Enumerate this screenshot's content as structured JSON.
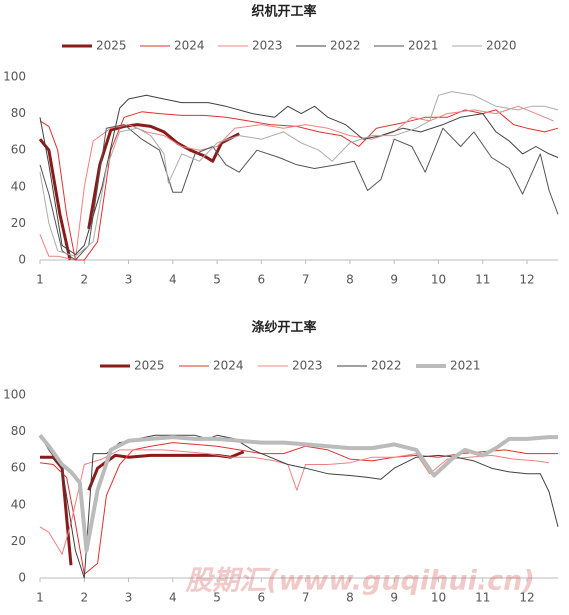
{
  "watermark": "股期汇(www.guqihui.cn)",
  "chart_data": [
    {
      "type": "line",
      "title": "织机开工率",
      "xlim": [
        1,
        12.7
      ],
      "xticks": [
        1,
        2,
        3,
        4,
        5,
        6,
        7,
        8,
        9,
        10,
        11,
        12
      ],
      "ylim": [
        0,
        100
      ],
      "yticks": [
        0,
        20,
        40,
        60,
        80,
        100
      ],
      "series": [
        {
          "name": "2025",
          "color": "#8b1a1a",
          "line_width": 3,
          "x": [
            1,
            1.2,
            1.45,
            1.68,
            1.9,
            2.1,
            2.35,
            2.6,
            2.9,
            3.2,
            3.5,
            3.8,
            4.1,
            4.4,
            4.7,
            4.9,
            5.1,
            5.5
          ],
          "values": [
            66,
            60,
            25,
            0,
            null,
            17,
            52,
            71,
            73,
            74,
            73,
            70,
            64,
            60,
            57,
            54,
            64,
            69
          ]
        },
        {
          "name": "2024",
          "color": "#e03030",
          "line_width": 1,
          "x": [
            1,
            1.2,
            1.4,
            1.6,
            1.8,
            2.0,
            2.3,
            2.6,
            2.9,
            3.3,
            3.7,
            4.2,
            4.7,
            5.2,
            5.7,
            6.2,
            6.8,
            7.3,
            7.8,
            8.2,
            8.6,
            9.2,
            9.7,
            10.2,
            10.6,
            11.0,
            11.3,
            11.7,
            12.0,
            12.4,
            12.7
          ],
          "values": [
            76,
            73,
            60,
            25,
            0,
            0,
            10,
            60,
            78,
            81,
            80,
            79,
            79,
            78,
            76,
            74,
            73,
            70,
            68,
            62,
            72,
            75,
            78,
            78,
            82,
            80,
            82,
            74,
            72,
            70,
            72
          ]
        },
        {
          "name": "2023",
          "color": "#f08080",
          "line_width": 1,
          "x": [
            1,
            1.2,
            1.4,
            1.8,
            2.0,
            2.2,
            2.6,
            3.0,
            3.4,
            3.8,
            4.2,
            4.6,
            5.0,
            5.4,
            6.0,
            6.5,
            7.0,
            7.5,
            8.0,
            8.5,
            9.0,
            9.4,
            9.8,
            10.2,
            10.8,
            11.3,
            11.8,
            12.2,
            12.6
          ],
          "values": [
            14,
            2,
            2,
            0,
            40,
            65,
            72,
            74,
            70,
            68,
            62,
            60,
            62,
            72,
            74,
            72,
            74,
            72,
            68,
            66,
            70,
            78,
            76,
            80,
            82,
            80,
            84,
            80,
            76
          ]
        },
        {
          "name": "2022",
          "color": "#404040",
          "line_width": 1,
          "x": [
            1,
            1.2,
            1.5,
            1.8,
            2.0,
            2.4,
            2.8,
            3.0,
            3.4,
            3.8,
            4.2,
            4.8,
            5.2,
            5.8,
            6.3,
            6.6,
            6.9,
            7.2,
            7.5,
            7.9,
            8.3,
            8.7,
            9.2,
            9.6,
            10.1,
            10.5,
            11.0,
            11.3,
            11.6,
            11.9,
            12.2,
            12.5,
            12.7
          ],
          "values": [
            78,
            52,
            8,
            3,
            8,
            40,
            83,
            88,
            90,
            88,
            86,
            86,
            84,
            80,
            78,
            84,
            80,
            84,
            78,
            74,
            66,
            68,
            72,
            70,
            74,
            78,
            80,
            70,
            65,
            58,
            62,
            58,
            56
          ]
        },
        {
          "name": "2021",
          "color": "#555555",
          "line_width": 1,
          "x": [
            1,
            1.2,
            1.5,
            1.8,
            2.1,
            2.5,
            2.9,
            3.3,
            3.7,
            4.0,
            4.2,
            4.5,
            4.9,
            5.2,
            5.5,
            5.9,
            6.4,
            6.8,
            7.2,
            7.7,
            8.1,
            8.4,
            8.7,
            9.0,
            9.4,
            9.7,
            10.1,
            10.5,
            10.8,
            11.2,
            11.6,
            11.9,
            12.3,
            12.5,
            12.7
          ],
          "values": [
            52,
            36,
            5,
            0,
            8,
            72,
            74,
            66,
            60,
            37,
            37,
            58,
            62,
            52,
            48,
            60,
            56,
            52,
            50,
            52,
            54,
            38,
            44,
            66,
            62,
            48,
            72,
            62,
            70,
            56,
            50,
            36,
            58,
            38,
            25
          ]
        },
        {
          "name": "2020",
          "color": "#aaaaaa",
          "line_width": 1,
          "x": [
            1,
            1.2,
            1.4,
            1.8,
            2.2,
            2.5,
            2.8,
            3.2,
            3.5,
            3.8,
            3.9,
            4.2,
            4.6,
            5.0,
            5.5,
            6.0,
            6.5,
            6.9,
            7.3,
            7.6,
            8.0,
            8.5,
            9.0,
            9.5,
            9.8,
            10.0,
            10.3,
            10.8,
            11.3,
            11.8,
            12.1,
            12.4,
            12.7
          ],
          "values": [
            48,
            20,
            5,
            2,
            10,
            50,
            70,
            72,
            68,
            58,
            42,
            58,
            54,
            64,
            68,
            66,
            70,
            64,
            60,
            54,
            64,
            68,
            68,
            72,
            76,
            90,
            92,
            90,
            84,
            82,
            84,
            84,
            82
          ]
        }
      ]
    },
    {
      "type": "line",
      "title": "涤纱开工率",
      "xlim": [
        1,
        12.7
      ],
      "xticks": [
        1,
        2,
        3,
        4,
        5,
        6,
        7,
        8,
        9,
        10,
        11,
        12
      ],
      "ylim": [
        0,
        100
      ],
      "yticks": [
        0,
        20,
        40,
        60,
        80,
        100
      ],
      "series": [
        {
          "name": "2025",
          "color": "#8b1a1a",
          "line_width": 3,
          "x": [
            1,
            1.3,
            1.5,
            1.7,
            1.9,
            2.1,
            2.3,
            2.7,
            3.0,
            3.5,
            4.0,
            4.5,
            5.0,
            5.3,
            5.6
          ],
          "values": [
            66,
            66,
            60,
            7,
            null,
            48,
            60,
            67,
            66,
            67,
            67,
            67,
            67,
            66,
            69
          ]
        },
        {
          "name": "2024",
          "color": "#e03030",
          "line_width": 1,
          "x": [
            1,
            1.3,
            1.6,
            1.8,
            2.0,
            2.3,
            2.5,
            2.8,
            3.1,
            3.5,
            4.0,
            4.5,
            5.0,
            5.5,
            6.0,
            6.5,
            7.0,
            7.5,
            8.0,
            8.5,
            9.0,
            9.5,
            10.0,
            10.5,
            11.0,
            11.5,
            12.0,
            12.7
          ],
          "values": [
            63,
            62,
            55,
            30,
            2,
            8,
            45,
            62,
            70,
            72,
            74,
            73,
            72,
            70,
            68,
            68,
            72,
            70,
            65,
            64,
            66,
            67,
            66,
            68,
            69,
            70,
            68,
            68
          ]
        },
        {
          "name": "2023",
          "color": "#f08080",
          "line_width": 1,
          "x": [
            1,
            1.2,
            1.5,
            1.7,
            2.0,
            2.4,
            2.8,
            3.3,
            3.8,
            4.3,
            4.8,
            5.3,
            5.8,
            6.3,
            6.6,
            6.8,
            7.0,
            7.5,
            8.0,
            8.5,
            9.0,
            9.5,
            9.8,
            10.2,
            10.7,
            11.2,
            11.7,
            12.2,
            12.5
          ],
          "values": [
            28,
            25,
            13,
            30,
            62,
            65,
            70,
            70,
            70,
            69,
            68,
            66,
            66,
            64,
            62,
            48,
            62,
            62,
            63,
            66,
            66,
            68,
            57,
            65,
            66,
            67,
            65,
            64,
            63
          ]
        },
        {
          "name": "2022",
          "color": "#404040",
          "line_width": 1,
          "x": [
            1,
            1.2,
            1.5,
            1.8,
            2.0,
            2.2,
            2.5,
            2.8,
            3.2,
            3.6,
            4.0,
            4.5,
            4.8,
            5.0,
            5.4,
            5.8,
            6.2,
            6.6,
            7.0,
            7.5,
            8.0,
            8.4,
            8.7,
            9.0,
            9.5,
            10.0,
            10.4,
            10.8,
            11.2,
            11.6,
            12.0,
            12.3,
            12.5,
            12.7
          ],
          "values": [
            78,
            70,
            60,
            15,
            0,
            68,
            68,
            74,
            76,
            78,
            78,
            78,
            76,
            78,
            76,
            70,
            66,
            62,
            60,
            57,
            56,
            55,
            54,
            60,
            66,
            67,
            66,
            64,
            60,
            58,
            57,
            57,
            47,
            28
          ]
        },
        {
          "name": "2021",
          "color": "#bbbbbb",
          "line_width": 4,
          "x": [
            1,
            1.2,
            1.5,
            1.7,
            1.9,
            2.05,
            2.3,
            2.6,
            3.0,
            3.5,
            4.0,
            4.5,
            5.0,
            5.5,
            6.0,
            6.5,
            7.0,
            7.5,
            8.0,
            8.5,
            9.0,
            9.5,
            9.9,
            10.3,
            10.6,
            11.0,
            11.3,
            11.6,
            12.0,
            12.5,
            12.7
          ],
          "values": [
            78,
            72,
            62,
            58,
            52,
            15,
            48,
            70,
            75,
            76,
            77,
            76,
            76,
            75,
            74,
            74,
            73,
            72,
            71,
            71,
            73,
            70,
            56,
            65,
            70,
            67,
            71,
            76,
            76,
            77,
            77
          ]
        }
      ]
    }
  ]
}
